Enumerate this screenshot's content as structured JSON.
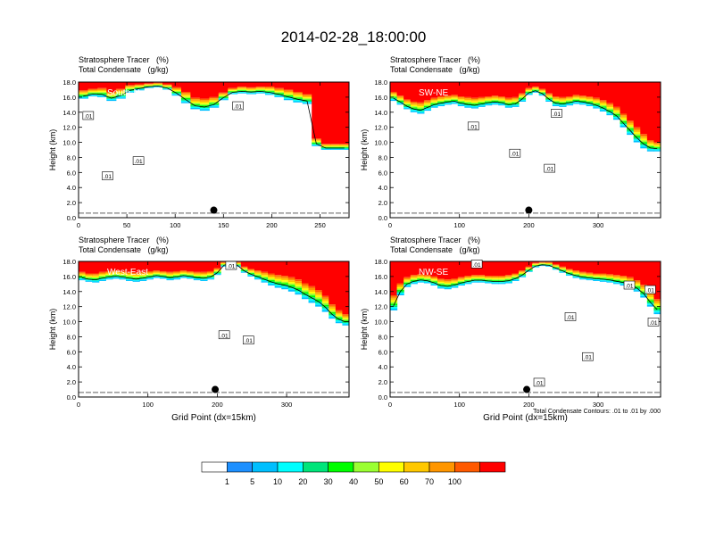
{
  "figure": {
    "title": "2014-02-28_18:00:00",
    "header_line1": "Stratosphere Tracer   (%)",
    "header_line2": "Total Condensate   (g/kg)",
    "ylabel": "Height (km)",
    "xlabel": "Grid Point (dx=15km)",
    "contour_note": "Total Condensate Contours: .01 to .01 by .000",
    "colorbar": {
      "labels": [
        "1",
        "5",
        "10",
        "20",
        "30",
        "40",
        "50",
        "60",
        "70",
        "100"
      ],
      "colors": [
        "#ffffff",
        "#1e90ff",
        "#00bfff",
        "#00ffff",
        "#00e57a",
        "#00ff00",
        "#9aff32",
        "#ffff00",
        "#ffc800",
        "#ff9600",
        "#ff5a00",
        "#ff0000"
      ]
    }
  },
  "chart_data": [
    {
      "type": "heatmap",
      "panel": "South-North",
      "ylim": [
        0,
        18
      ],
      "xlim": [
        0,
        280
      ],
      "xticks": [
        0,
        50,
        100,
        150,
        200,
        250
      ],
      "yticks": [
        0.0,
        2.0,
        4.0,
        6.0,
        8.0,
        10.0,
        12.0,
        14.0,
        16.0,
        18.0
      ],
      "contour_labels": [
        {
          "text": ".01",
          "x": 10,
          "y": 13.5
        },
        {
          "text": ".01",
          "x": 30,
          "y": 5.5
        },
        {
          "text": ".01",
          "x": 62,
          "y": 7.5
        },
        {
          "text": ".01",
          "x": 165,
          "y": 14.8
        }
      ],
      "marker": {
        "x": 140,
        "y": 1.0
      },
      "tropopause_km": [
        15.8,
        16.1,
        16.0,
        15.5,
        15.8,
        16.6,
        16.9,
        17.2,
        17.3,
        17.0,
        16.2,
        15.2,
        14.4,
        14.2,
        14.6,
        15.6,
        16.4,
        16.5,
        16.4,
        16.5,
        16.3,
        16.0,
        15.6,
        15.3,
        15.1,
        9.5,
        9.0,
        9.0,
        9.0
      ],
      "green_band_km": [
        1.1,
        1.0,
        1.2,
        1.2,
        1.3,
        1.0,
        0.8,
        0.6,
        0.6,
        0.7,
        1.1,
        1.5,
        1.5,
        1.6,
        1.4,
        1.0,
        0.8,
        0.9,
        0.9,
        0.9,
        1.1,
        1.2,
        1.4,
        1.4,
        1.3,
        1.0,
        0.8,
        0.8,
        0.8
      ]
    },
    {
      "type": "heatmap",
      "panel": "SW-NE",
      "ylim": [
        0,
        18
      ],
      "xlim": [
        0,
        390
      ],
      "xticks": [
        0,
        100,
        200,
        300
      ],
      "yticks": [
        0.0,
        2.0,
        4.0,
        6.0,
        8.0,
        10.0,
        12.0,
        14.0,
        16.0,
        18.0
      ],
      "contour_labels": [
        {
          "text": ".01",
          "x": 120,
          "y": 12.1
        },
        {
          "text": ".01",
          "x": 180,
          "y": 8.5
        },
        {
          "text": ".01",
          "x": 240,
          "y": 13.8
        },
        {
          "text": ".01",
          "x": 230,
          "y": 6.5
        }
      ],
      "marker": {
        "x": 200,
        "y": 1.0
      },
      "tropopause_km": [
        15.5,
        15.0,
        14.4,
        14.0,
        13.8,
        14.2,
        14.6,
        14.8,
        15.0,
        15.1,
        14.8,
        14.6,
        14.5,
        14.7,
        14.9,
        15.0,
        14.9,
        14.6,
        14.7,
        15.4,
        16.3,
        16.6,
        16.2,
        15.4,
        14.8,
        14.7,
        14.9,
        15.1,
        15.0,
        14.8,
        14.5,
        14.1,
        13.6,
        13.0,
        12.0,
        11.0,
        10.0,
        9.2,
        8.8,
        8.8
      ],
      "green_band_km": [
        1.2,
        1.2,
        1.3,
        1.4,
        1.5,
        1.4,
        1.3,
        1.3,
        1.2,
        1.2,
        1.3,
        1.4,
        1.4,
        1.3,
        1.2,
        1.2,
        1.2,
        1.3,
        1.3,
        1.1,
        0.9,
        0.8,
        0.9,
        1.1,
        1.3,
        1.3,
        1.2,
        1.2,
        1.2,
        1.3,
        1.4,
        1.5,
        1.6,
        1.7,
        1.8,
        1.9,
        2.0,
        1.9,
        1.5,
        1.2
      ]
    },
    {
      "type": "heatmap",
      "panel": "West-East",
      "ylim": [
        0,
        18
      ],
      "xlim": [
        0,
        390
      ],
      "xticks": [
        0,
        100,
        200,
        300
      ],
      "yticks": [
        0.0,
        2.0,
        4.0,
        6.0,
        8.0,
        10.0,
        12.0,
        14.0,
        16.0,
        18.0
      ],
      "contour_labels": [
        {
          "text": ".01",
          "x": 220,
          "y": 17.4
        },
        {
          "text": ".01",
          "x": 210,
          "y": 8.2
        },
        {
          "text": ".01",
          "x": 245,
          "y": 7.5
        }
      ],
      "marker": {
        "x": 197,
        "y": 1.0
      },
      "tropopause_km": [
        15.5,
        15.3,
        15.2,
        15.4,
        15.6,
        15.7,
        15.6,
        15.4,
        15.3,
        15.4,
        15.6,
        15.8,
        15.7,
        15.5,
        15.6,
        15.8,
        15.7,
        15.5,
        15.4,
        15.6,
        16.2,
        17.3,
        17.6,
        17.3,
        16.5,
        16.0,
        15.6,
        15.2,
        14.8,
        14.5,
        14.3,
        14.0,
        13.6,
        13.0,
        12.5,
        12.0,
        11.3,
        10.4,
        9.8,
        9.5
      ],
      "green_band_km": [
        1.1,
        1.1,
        1.2,
        1.2,
        1.1,
        1.1,
        1.1,
        1.2,
        1.2,
        1.2,
        1.1,
        1.0,
        1.0,
        1.1,
        1.1,
        1.0,
        1.0,
        1.1,
        1.2,
        1.1,
        0.9,
        0.6,
        0.5,
        0.6,
        0.8,
        1.0,
        1.2,
        1.4,
        1.6,
        1.7,
        1.8,
        1.9,
        2.0,
        2.1,
        2.2,
        2.2,
        2.1,
        1.9,
        1.7,
        1.5
      ]
    },
    {
      "type": "heatmap",
      "panel": "NW-SE",
      "ylim": [
        0,
        18
      ],
      "xlim": [
        0,
        390
      ],
      "xticks": [
        0,
        100,
        200,
        300
      ],
      "yticks": [
        0.0,
        2.0,
        4.0,
        6.0,
        8.0,
        10.0,
        12.0,
        14.0,
        16.0,
        18.0
      ],
      "contour_labels": [
        {
          "text": ".01",
          "x": 125,
          "y": 17.6
        },
        {
          "text": ".01",
          "x": 345,
          "y": 14.8
        },
        {
          "text": ".01",
          "x": 375,
          "y": 14.2
        },
        {
          "text": ".01",
          "x": 260,
          "y": 10.6
        },
        {
          "text": ".01",
          "x": 390,
          "y": 9.9
        },
        {
          "text": ".01",
          "x": 285,
          "y": 5.3
        },
        {
          "text": ".01",
          "x": 215,
          "y": 1.9
        }
      ],
      "marker": {
        "x": 197,
        "y": 1.0
      },
      "tropopause_km": [
        11.5,
        13.5,
        14.6,
        15.0,
        15.2,
        15.1,
        14.8,
        14.4,
        14.3,
        14.5,
        14.8,
        15.0,
        15.2,
        15.2,
        15.1,
        15.0,
        15.0,
        15.1,
        15.4,
        15.9,
        16.6,
        17.2,
        17.4,
        17.3,
        16.9,
        16.5,
        16.1,
        15.8,
        15.6,
        15.5,
        15.4,
        15.3,
        15.2,
        15.0,
        14.8,
        14.5,
        14.0,
        13.2,
        12.0,
        11.0
      ],
      "green_band_km": [
        2.0,
        1.6,
        1.3,
        1.2,
        1.1,
        1.1,
        1.2,
        1.3,
        1.3,
        1.2,
        1.1,
        1.1,
        1.0,
        1.0,
        1.0,
        1.1,
        1.1,
        1.1,
        1.0,
        0.9,
        0.7,
        0.6,
        0.5,
        0.6,
        0.7,
        0.8,
        0.9,
        1.0,
        1.0,
        1.0,
        1.0,
        1.1,
        1.1,
        1.2,
        1.3,
        1.4,
        1.5,
        1.7,
        1.9,
        2.0
      ]
    }
  ]
}
